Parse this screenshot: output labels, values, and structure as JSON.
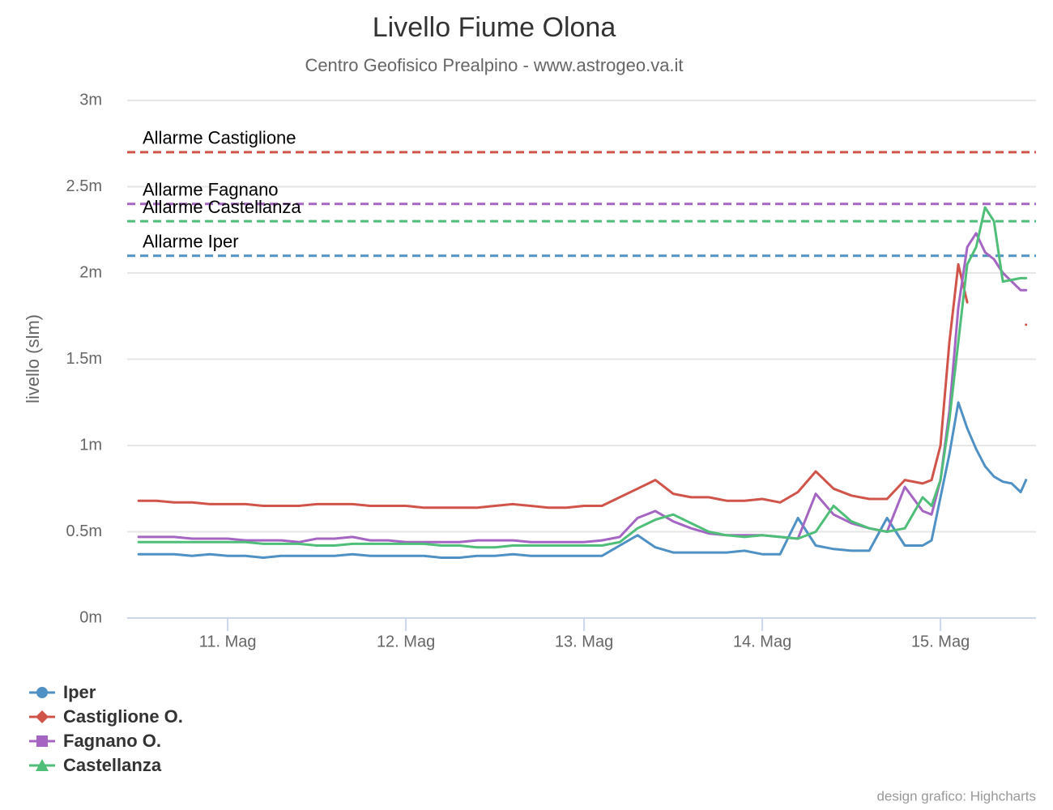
{
  "chart_data": {
    "type": "line",
    "title": "Livello Fiume Olona",
    "subtitle": "Centro Geofisico Prealpino - www.astrogeo.va.it",
    "y_axis_title": "livello (slm)",
    "credits": "design grafico: Highcharts",
    "xlim": [
      10.436,
      15.536
    ],
    "xticks": [
      {
        "value": 11,
        "label": "11. Mag"
      },
      {
        "value": 12,
        "label": "12. Mag"
      },
      {
        "value": 13,
        "label": "13. Mag"
      },
      {
        "value": 14,
        "label": "14. Mag"
      },
      {
        "value": 15,
        "label": "15. Mag"
      }
    ],
    "ylim": [
      0,
      3
    ],
    "yticks": [
      {
        "value": 0,
        "label": "0m"
      },
      {
        "value": 0.5,
        "label": "0.5m"
      },
      {
        "value": 1,
        "label": "1m"
      },
      {
        "value": 1.5,
        "label": "1.5m"
      },
      {
        "value": 2,
        "label": "2m"
      },
      {
        "value": 2.5,
        "label": "2.5m"
      },
      {
        "value": 3,
        "label": "3m"
      }
    ],
    "grid": true,
    "legend": "bottom-left",
    "plot_lines": [
      {
        "label": "Allarme Castiglione",
        "value": 2.7,
        "color": "#d0544a"
      },
      {
        "label": "Allarme Fagnano",
        "value": 2.4,
        "color": "#a466c2"
      },
      {
        "label": "Allarme Castellanza",
        "value": 2.3,
        "color": "#4fbe79"
      },
      {
        "label": "Allarme Iper",
        "value": 2.1,
        "color": "#4f91c4"
      }
    ],
    "x": [
      10.5,
      10.6,
      10.7,
      10.8,
      10.9,
      11.0,
      11.1,
      11.2,
      11.3,
      11.4,
      11.5,
      11.6,
      11.7,
      11.8,
      11.9,
      12.0,
      12.1,
      12.2,
      12.3,
      12.4,
      12.5,
      12.6,
      12.7,
      12.8,
      12.9,
      13.0,
      13.1,
      13.2,
      13.3,
      13.4,
      13.5,
      13.6,
      13.7,
      13.8,
      13.9,
      14.0,
      14.1,
      14.2,
      14.3,
      14.4,
      14.5,
      14.6,
      14.7,
      14.8,
      14.9,
      14.95,
      15.0,
      15.05,
      15.1,
      15.15,
      15.2,
      15.25,
      15.3,
      15.35,
      15.4,
      15.45,
      15.48
    ],
    "series": [
      {
        "name": "Iper",
        "color": "#4f91c4",
        "marker": "circle",
        "values": [
          0.37,
          0.37,
          0.37,
          0.36,
          0.37,
          0.36,
          0.36,
          0.35,
          0.36,
          0.36,
          0.36,
          0.36,
          0.37,
          0.36,
          0.36,
          0.36,
          0.36,
          0.35,
          0.35,
          0.36,
          0.36,
          0.37,
          0.36,
          0.36,
          0.36,
          0.36,
          0.36,
          0.42,
          0.48,
          0.41,
          0.38,
          0.38,
          0.38,
          0.38,
          0.39,
          0.37,
          0.37,
          0.58,
          0.42,
          0.4,
          0.39,
          0.39,
          0.58,
          0.42,
          0.42,
          0.45,
          0.7,
          0.95,
          1.25,
          1.1,
          0.98,
          0.88,
          0.82,
          0.79,
          0.78,
          0.73,
          0.8
        ]
      },
      {
        "name": "Castiglione O.",
        "color": "#d0544a",
        "marker": "diamond",
        "values": [
          0.68,
          0.68,
          0.67,
          0.67,
          0.66,
          0.66,
          0.66,
          0.65,
          0.65,
          0.65,
          0.66,
          0.66,
          0.66,
          0.65,
          0.65,
          0.65,
          0.64,
          0.64,
          0.64,
          0.64,
          0.65,
          0.66,
          0.65,
          0.64,
          0.64,
          0.65,
          0.65,
          0.7,
          0.75,
          0.8,
          0.72,
          0.7,
          0.7,
          0.68,
          0.68,
          0.69,
          0.67,
          0.73,
          0.85,
          0.75,
          0.71,
          0.69,
          0.69,
          0.8,
          0.78,
          0.8,
          1.0,
          1.6,
          2.05,
          1.83,
          null,
          null,
          null,
          null,
          null,
          null,
          1.7
        ]
      },
      {
        "name": "Fagnano O.",
        "color": "#a466c2",
        "marker": "square",
        "values": [
          0.47,
          0.47,
          0.47,
          0.46,
          0.46,
          0.46,
          0.45,
          0.45,
          0.45,
          0.44,
          0.46,
          0.46,
          0.47,
          0.45,
          0.45,
          0.44,
          0.44,
          0.44,
          0.44,
          0.45,
          0.45,
          0.45,
          0.44,
          0.44,
          0.44,
          0.44,
          0.45,
          0.47,
          0.58,
          0.62,
          0.56,
          0.52,
          0.49,
          0.48,
          0.48,
          0.48,
          0.47,
          0.46,
          0.72,
          0.6,
          0.55,
          0.52,
          0.5,
          0.76,
          0.62,
          0.6,
          0.8,
          1.2,
          1.8,
          2.15,
          2.23,
          2.12,
          2.08,
          2.0,
          1.95,
          1.9,
          1.9
        ]
      },
      {
        "name": "Castellanza",
        "color": "#4fbe79",
        "marker": "triangle",
        "values": [
          0.44,
          0.44,
          0.44,
          0.44,
          0.44,
          0.44,
          0.44,
          0.43,
          0.43,
          0.43,
          0.42,
          0.42,
          0.43,
          0.43,
          0.43,
          0.43,
          0.43,
          0.42,
          0.42,
          0.41,
          0.41,
          0.42,
          0.42,
          0.42,
          0.42,
          0.42,
          0.42,
          0.44,
          0.52,
          0.57,
          0.6,
          0.55,
          0.5,
          0.48,
          0.47,
          0.48,
          0.47,
          0.46,
          0.5,
          0.65,
          0.56,
          0.52,
          0.5,
          0.52,
          0.7,
          0.65,
          0.8,
          1.15,
          1.6,
          2.05,
          2.15,
          2.38,
          2.3,
          1.95,
          1.96,
          1.97,
          1.97
        ]
      }
    ]
  }
}
